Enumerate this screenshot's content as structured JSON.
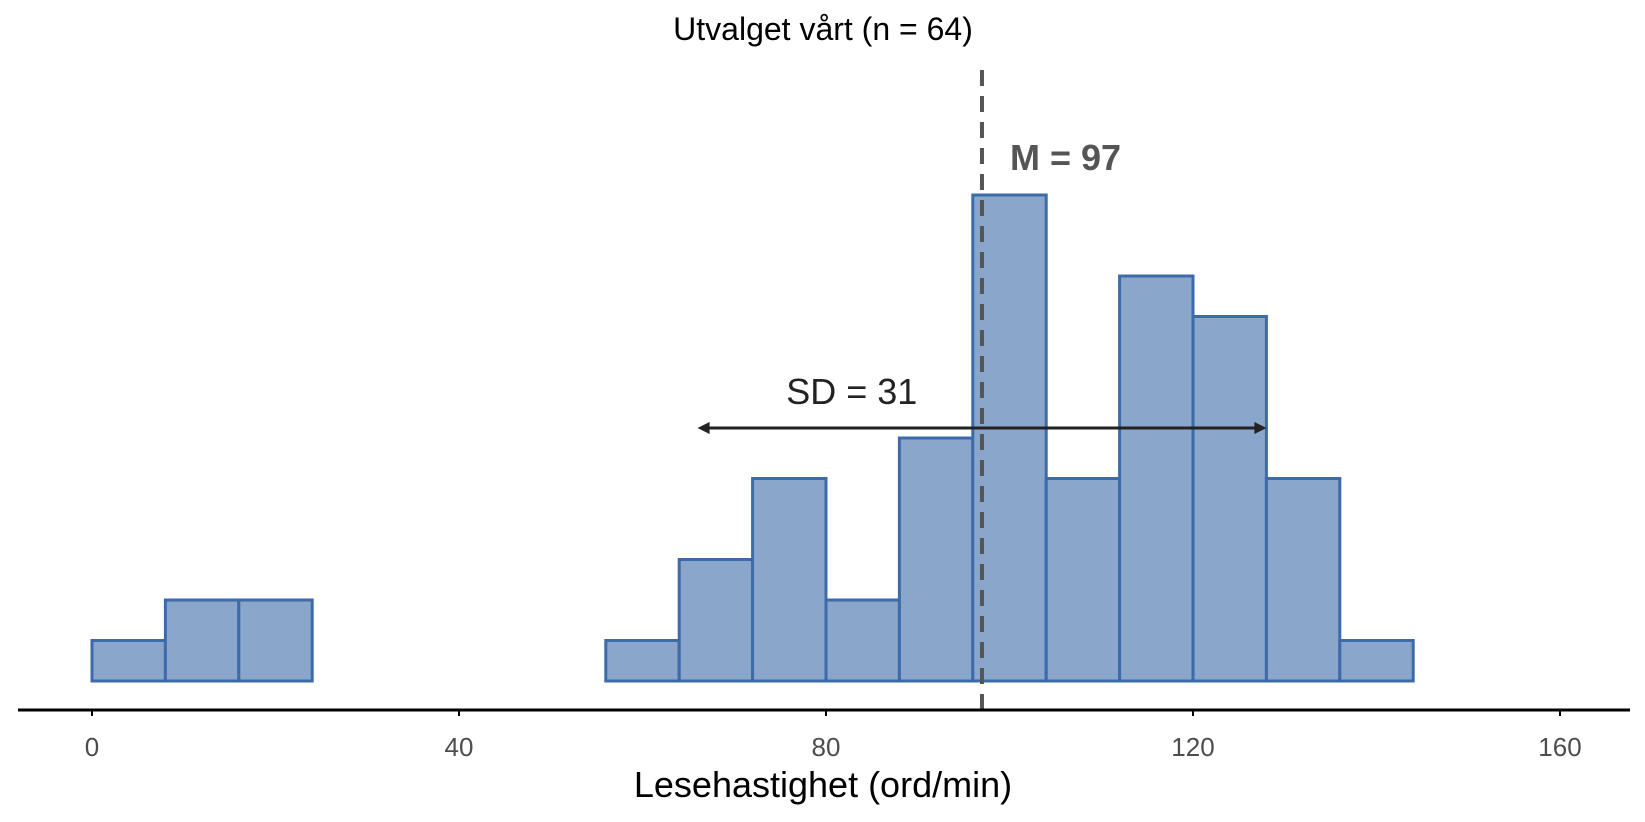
{
  "chart_data": {
    "type": "histogram",
    "title": "Utvalget vårt (n = 64)",
    "xlabel": "Lesehastighet (ord/min)",
    "ylabel": "",
    "xlim": [
      -8,
      168
    ],
    "x_ticks": [
      0,
      40,
      80,
      120,
      160
    ],
    "bin_width": 8,
    "bins": [
      {
        "start": 0,
        "end": 8,
        "count": 1
      },
      {
        "start": 8,
        "end": 16,
        "count": 2
      },
      {
        "start": 16,
        "end": 24,
        "count": 2
      },
      {
        "start": 24,
        "end": 32,
        "count": 0
      },
      {
        "start": 32,
        "end": 40,
        "count": 0
      },
      {
        "start": 40,
        "end": 48,
        "count": 0
      },
      {
        "start": 48,
        "end": 56,
        "count": 0
      },
      {
        "start": 56,
        "end": 64,
        "count": 1
      },
      {
        "start": 64,
        "end": 72,
        "count": 3
      },
      {
        "start": 72,
        "end": 80,
        "count": 5
      },
      {
        "start": 80,
        "end": 88,
        "count": 2
      },
      {
        "start": 88,
        "end": 96,
        "count": 6
      },
      {
        "start": 96,
        "end": 104,
        "count": 12
      },
      {
        "start": 104,
        "end": 112,
        "count": 5
      },
      {
        "start": 112,
        "end": 120,
        "count": 10
      },
      {
        "start": 120,
        "end": 128,
        "count": 9
      },
      {
        "start": 128,
        "end": 136,
        "count": 5
      },
      {
        "start": 136,
        "end": 144,
        "count": 1
      }
    ],
    "mean": 97,
    "sd": 31,
    "sd_arrow": {
      "from": 66,
      "to": 128
    },
    "annotations": {
      "mean_label": "M = 97",
      "sd_label": "SD = 31"
    },
    "colors": {
      "bar_fill": "#8aa6cb",
      "bar_stroke": "#3d6aa8",
      "mean_line": "#555555",
      "arrow": "#222222"
    },
    "grid": false
  }
}
